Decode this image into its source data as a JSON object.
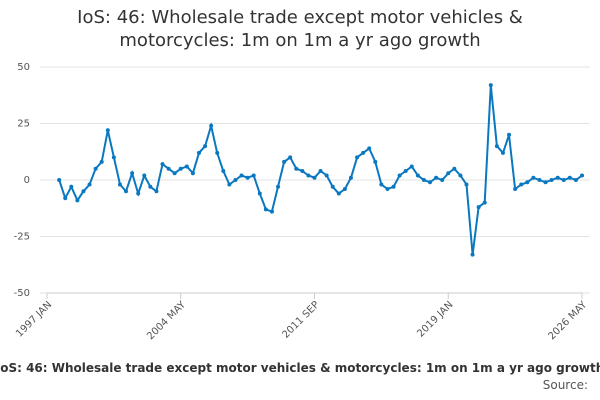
{
  "chart_data": {
    "type": "line",
    "title": "IoS: 46: Wholesale trade except motor vehicles & motorcycles: 1m on 1m a yr ago growth",
    "source": "Source:",
    "categories": [
      "1997 JAN",
      "1997 MAY",
      "1997 SEP",
      "1998 JAN",
      "1998 MAY",
      "1998 SEP",
      "1999 JAN",
      "1999 MAY",
      "1999 SEP",
      "2000 JAN",
      "2000 MAY",
      "2000 SEP",
      "2001 JAN",
      "2001 MAY",
      "2001 SEP",
      "2002 JAN",
      "2002 MAY",
      "2002 SEP",
      "2003 JAN",
      "2003 MAY",
      "2003 SEP",
      "2004 JAN",
      "2004 MAY",
      "2004 SEP",
      "2005 JAN",
      "2005 MAY",
      "2005 SEP",
      "2006 JAN",
      "2006 MAY",
      "2006 SEP",
      "2007 JAN",
      "2007 MAY",
      "2007 SEP",
      "2008 JAN",
      "2008 MAY",
      "2008 SEP",
      "2009 JAN",
      "2009 MAY",
      "2009 SEP",
      "2010 JAN",
      "2010 MAY",
      "2010 SEP",
      "2011 JAN",
      "2011 MAY",
      "2011 SEP",
      "2012 JAN",
      "2012 MAY",
      "2012 SEP",
      "2013 JAN",
      "2013 MAY",
      "2013 SEP",
      "2014 JAN",
      "2014 MAY",
      "2014 SEP",
      "2015 JAN",
      "2015 MAY",
      "2015 SEP",
      "2016 JAN",
      "2016 MAY",
      "2016 SEP",
      "2017 JAN",
      "2017 MAY",
      "2017 SEP",
      "2018 JAN",
      "2018 MAY",
      "2018 SEP",
      "2019 JAN",
      "2019 MAY",
      "2019 SEP",
      "2020 JAN",
      "2020 MAY",
      "2020 SEP",
      "2021 JAN",
      "2021 MAY",
      "2021 SEP",
      "2022 JAN",
      "2022 MAY",
      "2022 SEP",
      "2023 JAN",
      "2023 MAY",
      "2023 SEP",
      "2024 JAN",
      "2024 MAY",
      "2024 SEP",
      "2025 JAN",
      "2025 MAY",
      "2025 SEP",
      "2026 JAN",
      "2026 MAY"
    ],
    "values": [
      null,
      null,
      0,
      -8,
      -3,
      -9,
      -5,
      -2,
      5,
      8,
      22,
      10,
      -2,
      -5,
      3,
      -6,
      2,
      -3,
      -5,
      7,
      5,
      3,
      5,
      6,
      3,
      12,
      15,
      24,
      12,
      4,
      -2,
      0,
      2,
      1,
      2,
      -6,
      -13,
      -14,
      -3,
      8,
      10,
      5,
      4,
      2,
      1,
      4,
      2,
      -3,
      -6,
      -4,
      1,
      10,
      12,
      14,
      8,
      -2,
      -4,
      -3,
      2,
      4,
      6,
      2,
      0,
      -1,
      1,
      0,
      3,
      5,
      2,
      -2,
      -33,
      -12,
      -10,
      42,
      15,
      12,
      20,
      -4,
      -2,
      -1,
      1,
      0,
      -1,
      0,
      1,
      0,
      1,
      0,
      2
    ],
    "color": "#0a78c0",
    "xticks": [
      "1997 JAN",
      "2004 MAY",
      "2011 SEP",
      "2019 JAN",
      "2026 MAY"
    ],
    "ylim": [
      -50,
      50
    ],
    "yticks": [
      -50,
      -25,
      0,
      25,
      50
    ],
    "grid": true
  }
}
